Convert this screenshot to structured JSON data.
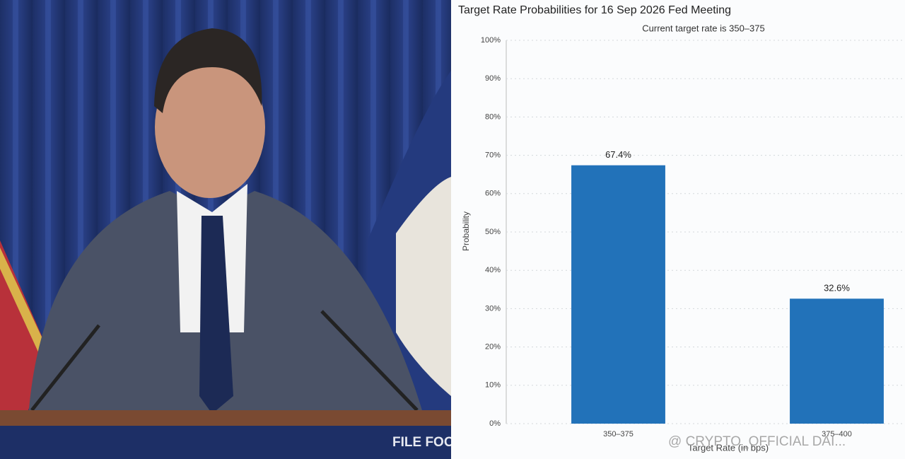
{
  "chart_data": {
    "type": "bar",
    "title": "Target Rate Probabilities for 16 Sep 2026 Fed Meeting",
    "subtitle": "Current target rate is 350–375",
    "y_label": "Probability",
    "x_label": "Target Rate (in bps)",
    "categories": [
      "350–375",
      "375–400"
    ],
    "values": [
      67.4,
      32.6
    ],
    "value_labels": [
      "67.4%",
      "32.6%"
    ],
    "color": "#2272b9",
    "ylim": [
      0,
      100
    ],
    "yticks": [
      {
        "value": 0,
        "label": "0%"
      },
      {
        "value": 10,
        "label": "10%"
      },
      {
        "value": 20,
        "label": "20%"
      },
      {
        "value": 30,
        "label": "30%"
      },
      {
        "value": 40,
        "label": "40%"
      },
      {
        "value": 50,
        "label": "50%"
      },
      {
        "value": 60,
        "label": "60%"
      },
      {
        "value": 70,
        "label": "70%"
      },
      {
        "value": 80,
        "label": "80%"
      },
      {
        "value": 90,
        "label": "90%"
      },
      {
        "value": 100,
        "label": "100%"
      }
    ],
    "grid": true
  },
  "photo": {
    "podium_text": "FILE FOO"
  },
  "watermark": "@ CRYPTO_OFFICIAL DAI..."
}
